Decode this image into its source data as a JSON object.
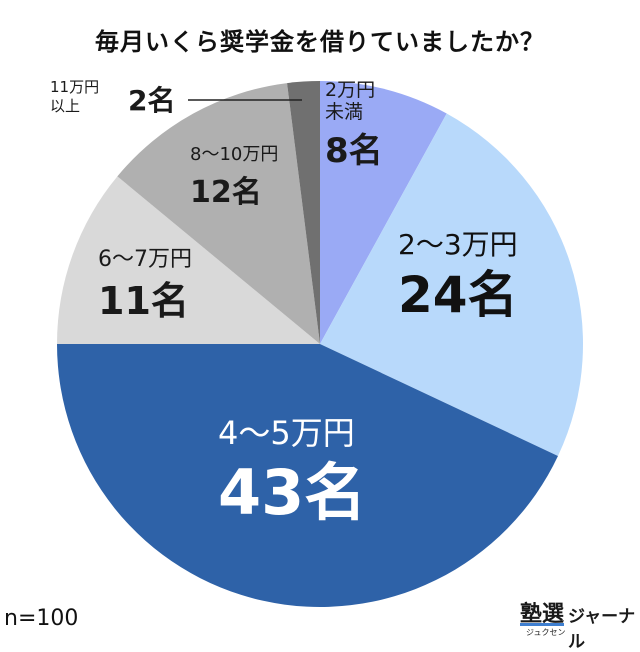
{
  "title": "毎月いくら奨学金を借りていましたか？",
  "sample_note": "n=100",
  "brand": {
    "kanji": "塾選",
    "small": "ジュクセン",
    "name": "ジャーナル"
  },
  "chart_data": {
    "type": "pie",
    "start": "12 o'clock",
    "direction": "clockwise",
    "slices": [
      {
        "label": "2万円未満",
        "label_lines": [
          "2万円",
          "未満"
        ],
        "value": 8,
        "value_label": "8名",
        "color": "#9aaaf5",
        "text_color": "#1a1a1a"
      },
      {
        "label": "2〜3万円",
        "label_lines": [
          "2〜3万円"
        ],
        "value": 24,
        "value_label": "24名",
        "color": "#b8d9fb",
        "text_color": "#111111"
      },
      {
        "label": "4〜5万円",
        "label_lines": [
          "4〜5万円"
        ],
        "value": 43,
        "value_label": "43名",
        "color": "#2e62a8",
        "text_color": "#ffffff"
      },
      {
        "label": "6〜7万円",
        "label_lines": [
          "6〜7万円"
        ],
        "value": 11,
        "value_label": "11名",
        "color": "#d9d9d9",
        "text_color": "#1a1a1a"
      },
      {
        "label": "8〜10万円",
        "label_lines": [
          "8〜10万円"
        ],
        "value": 12,
        "value_label": "12名",
        "color": "#b0b0b0",
        "text_color": "#1a1a1a"
      },
      {
        "label": "11万円以上",
        "label_lines": [
          "11万円",
          "以上"
        ],
        "value": 2,
        "value_label": "2名",
        "color": "#707070",
        "text_color": "#1a1a1a"
      }
    ]
  }
}
